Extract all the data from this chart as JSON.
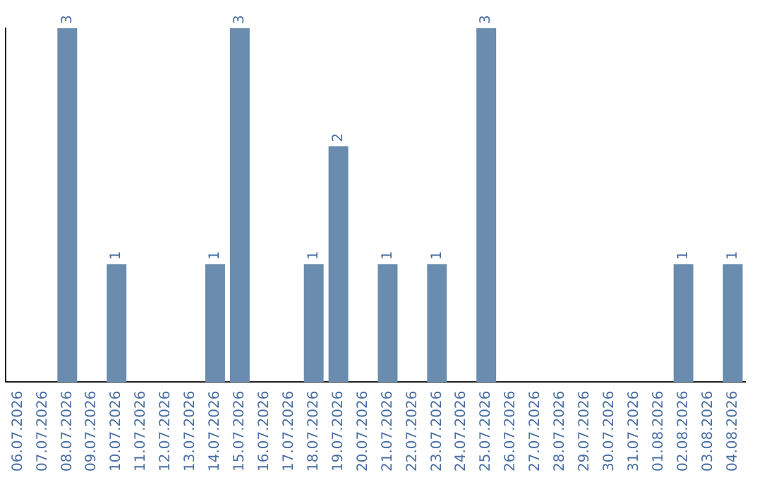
{
  "chart_data": {
    "type": "bar",
    "categories": [
      "06.07.2026",
      "07.07.2026",
      "08.07.2026",
      "09.07.2026",
      "10.07.2026",
      "11.07.2026",
      "12.07.2026",
      "13.07.2026",
      "14.07.2026",
      "15.07.2026",
      "16.07.2026",
      "17.07.2026",
      "18.07.2026",
      "19.07.2026",
      "20.07.2026",
      "21.07.2026",
      "22.07.2026",
      "23.07.2026",
      "24.07.2026",
      "25.07.2026",
      "26.07.2026",
      "27.07.2026",
      "28.07.2026",
      "29.07.2026",
      "30.07.2026",
      "31.07.2026",
      "01.08.2026",
      "02.08.2026",
      "03.08.2026",
      "04.08.2026"
    ],
    "values": [
      0,
      0,
      3,
      0,
      1,
      0,
      0,
      0,
      1,
      3,
      0,
      0,
      1,
      2,
      0,
      1,
      0,
      1,
      0,
      3,
      0,
      0,
      0,
      0,
      0,
      0,
      0,
      1,
      0,
      1
    ],
    "value_labels": [
      null,
      null,
      "3",
      null,
      "1",
      null,
      null,
      null,
      "1",
      "3",
      null,
      null,
      "1",
      "2",
      null,
      "1",
      null,
      "1",
      null,
      "3",
      null,
      null,
      null,
      null,
      null,
      null,
      null,
      "1",
      null,
      "1"
    ],
    "color": "#6a8caf",
    "ylim": [
      0,
      3
    ],
    "tick_labels": "x",
    "grid": false,
    "legend": false
  }
}
